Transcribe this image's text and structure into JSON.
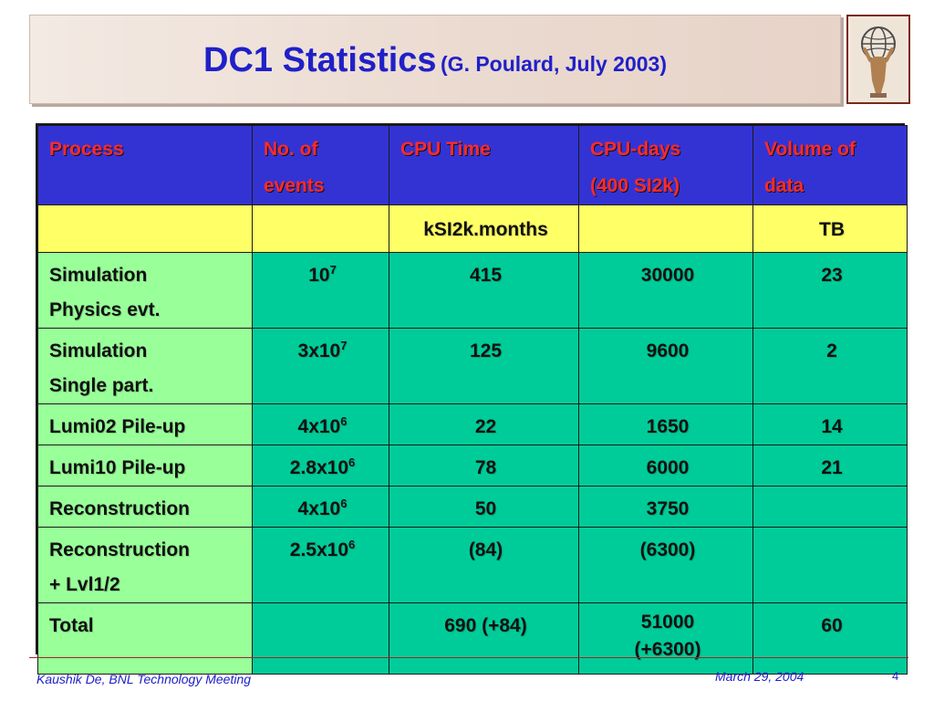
{
  "title": {
    "main": "DC1 Statistics",
    "sub": "(G. Poulard, July 2003)"
  },
  "logo": {
    "icon": "atlas-globe-icon"
  },
  "table": {
    "header": [
      {
        "line1": "Process",
        "line2": ""
      },
      {
        "line1": "No. of",
        "line2": "events"
      },
      {
        "line1": "CPU Time",
        "line2": ""
      },
      {
        "line1": "CPU-days",
        "line2": "(400 SI2k)"
      },
      {
        "line1": "Volume of",
        "line2": "data"
      }
    ],
    "units": [
      "",
      "",
      "kSI2k.months",
      "",
      "TB"
    ],
    "rows": [
      {
        "process": [
          "Simulation",
          "Physics evt."
        ],
        "events_base": "10",
        "events_exp": "7",
        "cpu_time": "415",
        "cpu_days": [
          "30000"
        ],
        "volume": "23"
      },
      {
        "process": [
          "Simulation",
          "Single part."
        ],
        "events_base": "3x10",
        "events_exp": "7",
        "cpu_time": "125",
        "cpu_days": [
          "9600"
        ],
        "volume": "2"
      },
      {
        "process": [
          "Lumi02 Pile-up"
        ],
        "events_base": "4x10",
        "events_exp": "6",
        "cpu_time": "22",
        "cpu_days": [
          "1650"
        ],
        "volume": "14"
      },
      {
        "process": [
          "Lumi10 Pile-up"
        ],
        "events_base": "2.8x10",
        "events_exp": "6",
        "cpu_time": "78",
        "cpu_days": [
          "6000"
        ],
        "volume": "21"
      },
      {
        "process": [
          "Reconstruction"
        ],
        "events_base": "4x10",
        "events_exp": "6",
        "cpu_time": "50",
        "cpu_days": [
          "3750"
        ],
        "volume": ""
      },
      {
        "process": [
          "Reconstruction",
          "+ Lvl1/2"
        ],
        "events_base": "2.5x10",
        "events_exp": "6",
        "cpu_time": "(84)",
        "cpu_days": [
          "(6300)"
        ],
        "volume": ""
      },
      {
        "process": [
          "Total"
        ],
        "events_base": "",
        "events_exp": "",
        "cpu_time": "690 (+84)",
        "cpu_days": [
          "51000",
          "(+6300)"
        ],
        "volume": "60"
      }
    ]
  },
  "footer": {
    "author": "Kaushik De, BNL Technology Meeting",
    "date": "March 29, 2004",
    "page": "4"
  },
  "colors": {
    "title": "#2020c8",
    "header_bg": "#3333d4",
    "header_text": "#ff2a2a",
    "units_bg": "#ffff66",
    "data_bg": "#00cc99",
    "process_bg": "#99ff99"
  }
}
